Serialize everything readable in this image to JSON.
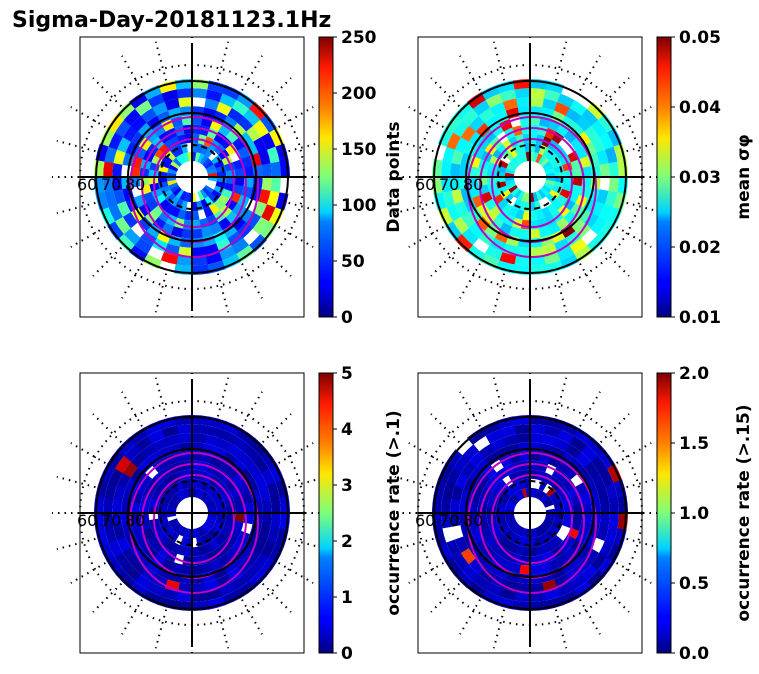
{
  "title": "Sigma-Day-20181123.1Hz",
  "lat_labels": [
    "60",
    "70",
    "80"
  ],
  "chart_data": [
    {
      "type": "heatmap",
      "projection": "polar",
      "panel": "top-left",
      "colormap": "jet",
      "colorbar_label": "Data points",
      "colorbar_range": [
        0,
        250
      ],
      "colorbar_ticks": [
        "0",
        "50",
        "100",
        "150",
        "200",
        "250"
      ],
      "dominant_fraction": 0.2,
      "hot_fraction": 0.05
    },
    {
      "type": "heatmap",
      "projection": "polar",
      "panel": "top-right",
      "colormap": "jet",
      "colorbar_label": "mean σφ",
      "colorbar_range": [
        0.01,
        0.05
      ],
      "colorbar_ticks": [
        "0.01",
        "0.02",
        "0.03",
        "0.04",
        "0.05"
      ],
      "dominant_fraction": 0.35,
      "hot_fraction": 0.08
    },
    {
      "type": "heatmap",
      "projection": "polar",
      "panel": "bottom-left",
      "colormap": "jet",
      "colorbar_label": "occurrence rate (>.1)",
      "colorbar_range": [
        0,
        5
      ],
      "colorbar_ticks": [
        "0",
        "1",
        "2",
        "3",
        "4",
        "5"
      ],
      "dominant_fraction": 0.0,
      "hot_fraction": 0.02
    },
    {
      "type": "heatmap",
      "projection": "polar",
      "panel": "bottom-right",
      "colormap": "jet",
      "colorbar_label": "occurrence rate (>.15)",
      "colorbar_range": [
        0.0,
        2.0
      ],
      "colorbar_ticks": [
        "0.0",
        "0.5",
        "1.0",
        "1.5",
        "2.0"
      ],
      "dominant_fraction": 0.0,
      "hot_fraction": 0.02
    }
  ]
}
